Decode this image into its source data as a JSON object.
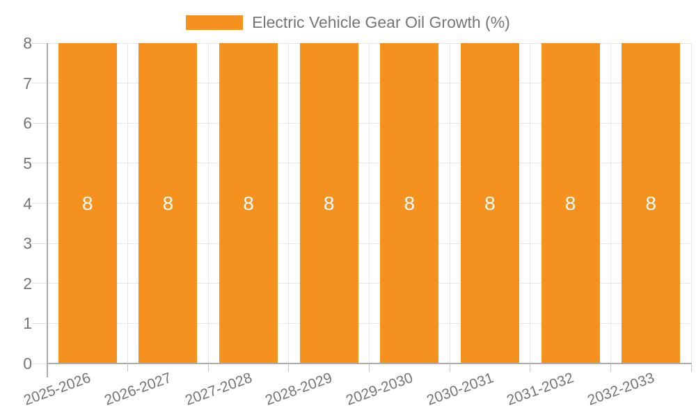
{
  "chart_data": {
    "type": "bar",
    "title": "",
    "categories": [
      "2025-2026",
      "2026-2027",
      "2027-2028",
      "2028-2029",
      "2029-2030",
      "2030-2031",
      "2031-2032",
      "2032-2033"
    ],
    "series": [
      {
        "name": "Electric Vehicle Gear Oil Growth (%)",
        "values": [
          8,
          8,
          8,
          8,
          8,
          8,
          8,
          8
        ],
        "color": "#F5921F"
      }
    ],
    "data_labels": [
      "8",
      "8",
      "8",
      "8",
      "8",
      "8",
      "8",
      "8"
    ],
    "xlabel": "",
    "ylabel": "",
    "ylim": [
      0,
      8
    ],
    "yticks": [
      0,
      1,
      2,
      3,
      4,
      5,
      6,
      7,
      8
    ],
    "grid": true,
    "legend_position": "top",
    "colors": {
      "bar": "#F5921F",
      "bar_label": "#FFFFFF",
      "axis_text": "#757575",
      "grid_line": "#E6E6E6",
      "axis_line": "#ABABAB",
      "x_tick": "#C4C4C4",
      "y_tick": "#E0E0E0",
      "background": "#FFFFFF"
    }
  }
}
